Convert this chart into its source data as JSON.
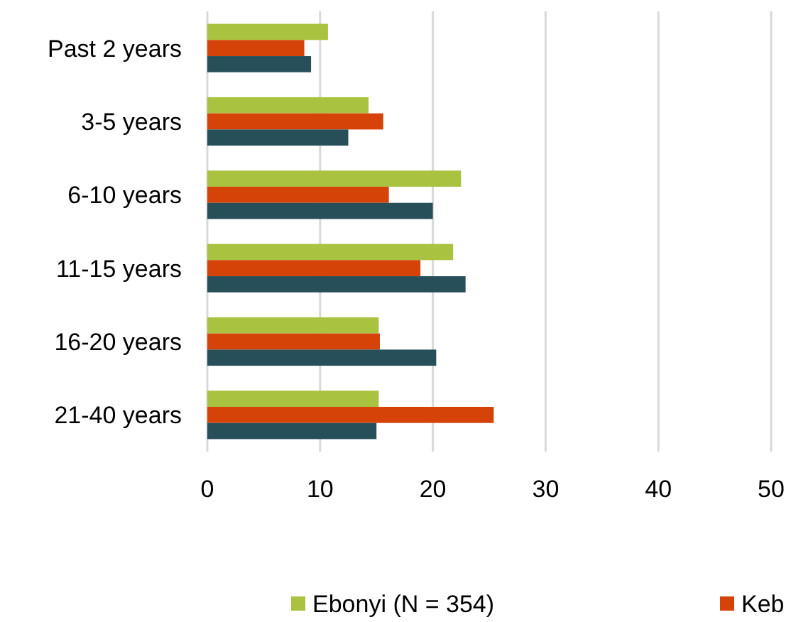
{
  "chart_data": {
    "type": "bar",
    "orientation": "horizontal",
    "categories": [
      "Past 2 years",
      "3-5 years",
      "6-10 years",
      "11-15 years",
      "16-20 years",
      "21-40 years"
    ],
    "series": [
      {
        "name": "Ebonyi (N = 354)",
        "color": "#a9c23f",
        "values": [
          10.7,
          14.3,
          22.5,
          21.8,
          15.2,
          15.2
        ]
      },
      {
        "name": "Keb",
        "color": "#d54309",
        "values": [
          8.6,
          15.6,
          16.1,
          18.9,
          15.3,
          25.4
        ]
      },
      {
        "color": "#264f5a",
        "values": [
          9.2,
          12.5,
          20.0,
          22.9,
          20.3,
          15.0
        ]
      }
    ],
    "xlim": [
      0,
      50
    ],
    "xticks": [
      0,
      10,
      20,
      30,
      40,
      50
    ],
    "grid": "x",
    "legend": "bottom"
  }
}
